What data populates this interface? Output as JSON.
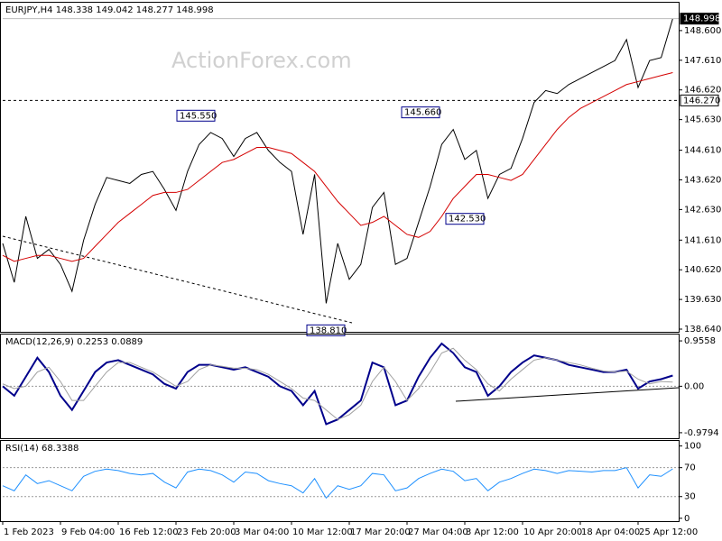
{
  "chart_data": [
    {
      "type": "line",
      "title": "EURJPY,H4 148.338 149.042 148.277 148.998",
      "watermark": "ActionForex.com",
      "ylim": [
        138.55,
        149.53
      ],
      "yticks": [
        {
          "value": 148.6,
          "label": "148.600"
        },
        {
          "value": 147.61,
          "label": "147.610"
        },
        {
          "value": 146.62,
          "label": "146.620"
        },
        {
          "value": 145.63,
          "label": "145.630"
        },
        {
          "value": 144.61,
          "label": "144.610"
        },
        {
          "value": 143.62,
          "label": "143.620"
        },
        {
          "value": 142.63,
          "label": "142.630"
        },
        {
          "value": 141.61,
          "label": "141.610"
        },
        {
          "value": 140.62,
          "label": "140.620"
        },
        {
          "value": 139.63,
          "label": "139.630"
        },
        {
          "value": 138.64,
          "label": "138.640"
        }
      ],
      "levels": [
        {
          "value": 148.998,
          "label": "148.998"
        },
        {
          "value": 146.27,
          "label": "146.270"
        }
      ],
      "annotations": [
        {
          "value": 145.55,
          "label": "145.550"
        },
        {
          "value": 145.66,
          "label": "145.660"
        },
        {
          "value": 142.53,
          "label": "142.530"
        },
        {
          "value": 138.81,
          "label": "138.810"
        }
      ],
      "series": [
        {
          "color": "#000000",
          "values": [
            141.5,
            140.2,
            142.4,
            141.0,
            141.3,
            140.8,
            139.9,
            141.6,
            142.8,
            143.7,
            143.6,
            143.5,
            143.8,
            143.9,
            143.3,
            142.6,
            143.9,
            144.8,
            145.2,
            145.0,
            144.4,
            145.0,
            145.2,
            144.6,
            144.2,
            143.9,
            141.8,
            143.8,
            139.5,
            141.5,
            140.3,
            140.8,
            142.7,
            143.2,
            140.8,
            141.0,
            142.2,
            143.4,
            144.8,
            145.3,
            144.3,
            144.6,
            143.0,
            143.8,
            144.0,
            145.0,
            146.2,
            146.6,
            146.5,
            146.8,
            147.0,
            147.2,
            147.4,
            147.6,
            148.3,
            146.7,
            147.6,
            147.7,
            148.998
          ]
        },
        {
          "color": "#d40000",
          "values": [
            141.1,
            140.9,
            141.0,
            141.1,
            141.1,
            141.0,
            140.9,
            141.0,
            141.4,
            141.8,
            142.2,
            142.5,
            142.8,
            143.1,
            143.2,
            143.2,
            143.3,
            143.6,
            143.9,
            144.2,
            144.3,
            144.5,
            144.7,
            144.7,
            144.6,
            144.5,
            144.2,
            143.9,
            143.4,
            142.9,
            142.5,
            142.1,
            142.2,
            142.4,
            142.1,
            141.8,
            141.7,
            141.9,
            142.4,
            143.0,
            143.4,
            143.8,
            143.8,
            143.7,
            143.6,
            143.8,
            144.3,
            144.8,
            145.3,
            145.7,
            146.0,
            146.2,
            146.4,
            146.6,
            146.8,
            146.9,
            147.0,
            147.1,
            147.2
          ]
        }
      ]
    },
    {
      "type": "line",
      "title": "MACD(12,26,9) 0.2253 0.0889",
      "ylim": [
        -1.095,
        1.09
      ],
      "yticks": [
        0.9558,
        {
          "value": 0,
          "label": "0.00"
        },
        -0.9794
      ],
      "series": [
        {
          "color": "#00008b",
          "values": [
            0.0,
            -0.2,
            0.2,
            0.6,
            0.3,
            -0.2,
            -0.5,
            -0.1,
            0.3,
            0.5,
            0.55,
            0.45,
            0.35,
            0.25,
            0.05,
            -0.05,
            0.3,
            0.45,
            0.45,
            0.4,
            0.35,
            0.4,
            0.3,
            0.2,
            0.0,
            -0.1,
            -0.4,
            -0.1,
            -0.8,
            -0.7,
            -0.5,
            -0.3,
            0.5,
            0.4,
            -0.4,
            -0.3,
            0.2,
            0.6,
            0.9,
            0.7,
            0.4,
            0.3,
            -0.2,
            0.0,
            0.3,
            0.5,
            0.65,
            0.6,
            0.55,
            0.45,
            0.4,
            0.35,
            0.3,
            0.3,
            0.35,
            -0.05,
            0.1,
            0.15,
            0.2253
          ]
        },
        {
          "color": "#a0a0a0",
          "values": [
            0.05,
            -0.05,
            0.0,
            0.3,
            0.4,
            0.1,
            -0.3,
            -0.3,
            0.0,
            0.3,
            0.5,
            0.5,
            0.4,
            0.3,
            0.15,
            0.0,
            0.1,
            0.35,
            0.45,
            0.42,
            0.38,
            0.38,
            0.35,
            0.25,
            0.1,
            -0.05,
            -0.25,
            -0.3,
            -0.5,
            -0.7,
            -0.6,
            -0.4,
            0.1,
            0.4,
            0.1,
            -0.3,
            -0.05,
            0.3,
            0.7,
            0.8,
            0.55,
            0.35,
            0.05,
            -0.1,
            0.15,
            0.35,
            0.55,
            0.6,
            0.55,
            0.5,
            0.45,
            0.38,
            0.32,
            0.3,
            0.32,
            0.15,
            0.05,
            0.1,
            0.0889
          ]
        }
      ]
    },
    {
      "type": "line",
      "title": "RSI(14) 68.3388",
      "ylim": [
        -4,
        107
      ],
      "yticks": [
        100,
        70,
        30,
        0
      ],
      "categories": [
        "1 Feb 2023",
        null,
        null,
        null,
        null,
        "9 Feb 04:00",
        null,
        null,
        null,
        null,
        "16 Feb 12:00",
        null,
        null,
        null,
        null,
        "23 Feb 20:00",
        null,
        null,
        null,
        null,
        "3 Mar 04:00",
        null,
        null,
        null,
        null,
        "10 Mar 12:00",
        null,
        null,
        null,
        null,
        "17 Mar 20:00",
        null,
        null,
        null,
        null,
        "27 Mar 04:00",
        null,
        null,
        null,
        null,
        "3 Apr 12:00",
        null,
        null,
        null,
        null,
        "10 Apr 20:00",
        null,
        null,
        null,
        null,
        "18 Apr 04:00",
        null,
        null,
        null,
        null,
        "25 Apr 12:00",
        null,
        null,
        null
      ],
      "series": [
        {
          "color": "#1e90ff",
          "values": [
            45,
            38,
            60,
            48,
            52,
            45,
            38,
            58,
            65,
            68,
            66,
            62,
            60,
            62,
            50,
            42,
            64,
            68,
            66,
            60,
            50,
            64,
            62,
            52,
            48,
            45,
            35,
            55,
            28,
            45,
            40,
            45,
            62,
            60,
            38,
            42,
            55,
            62,
            68,
            65,
            52,
            55,
            38,
            50,
            55,
            62,
            68,
            66,
            62,
            66,
            65,
            64,
            66,
            66,
            70,
            42,
            60,
            58,
            68.3388
          ]
        }
      ]
    }
  ]
}
